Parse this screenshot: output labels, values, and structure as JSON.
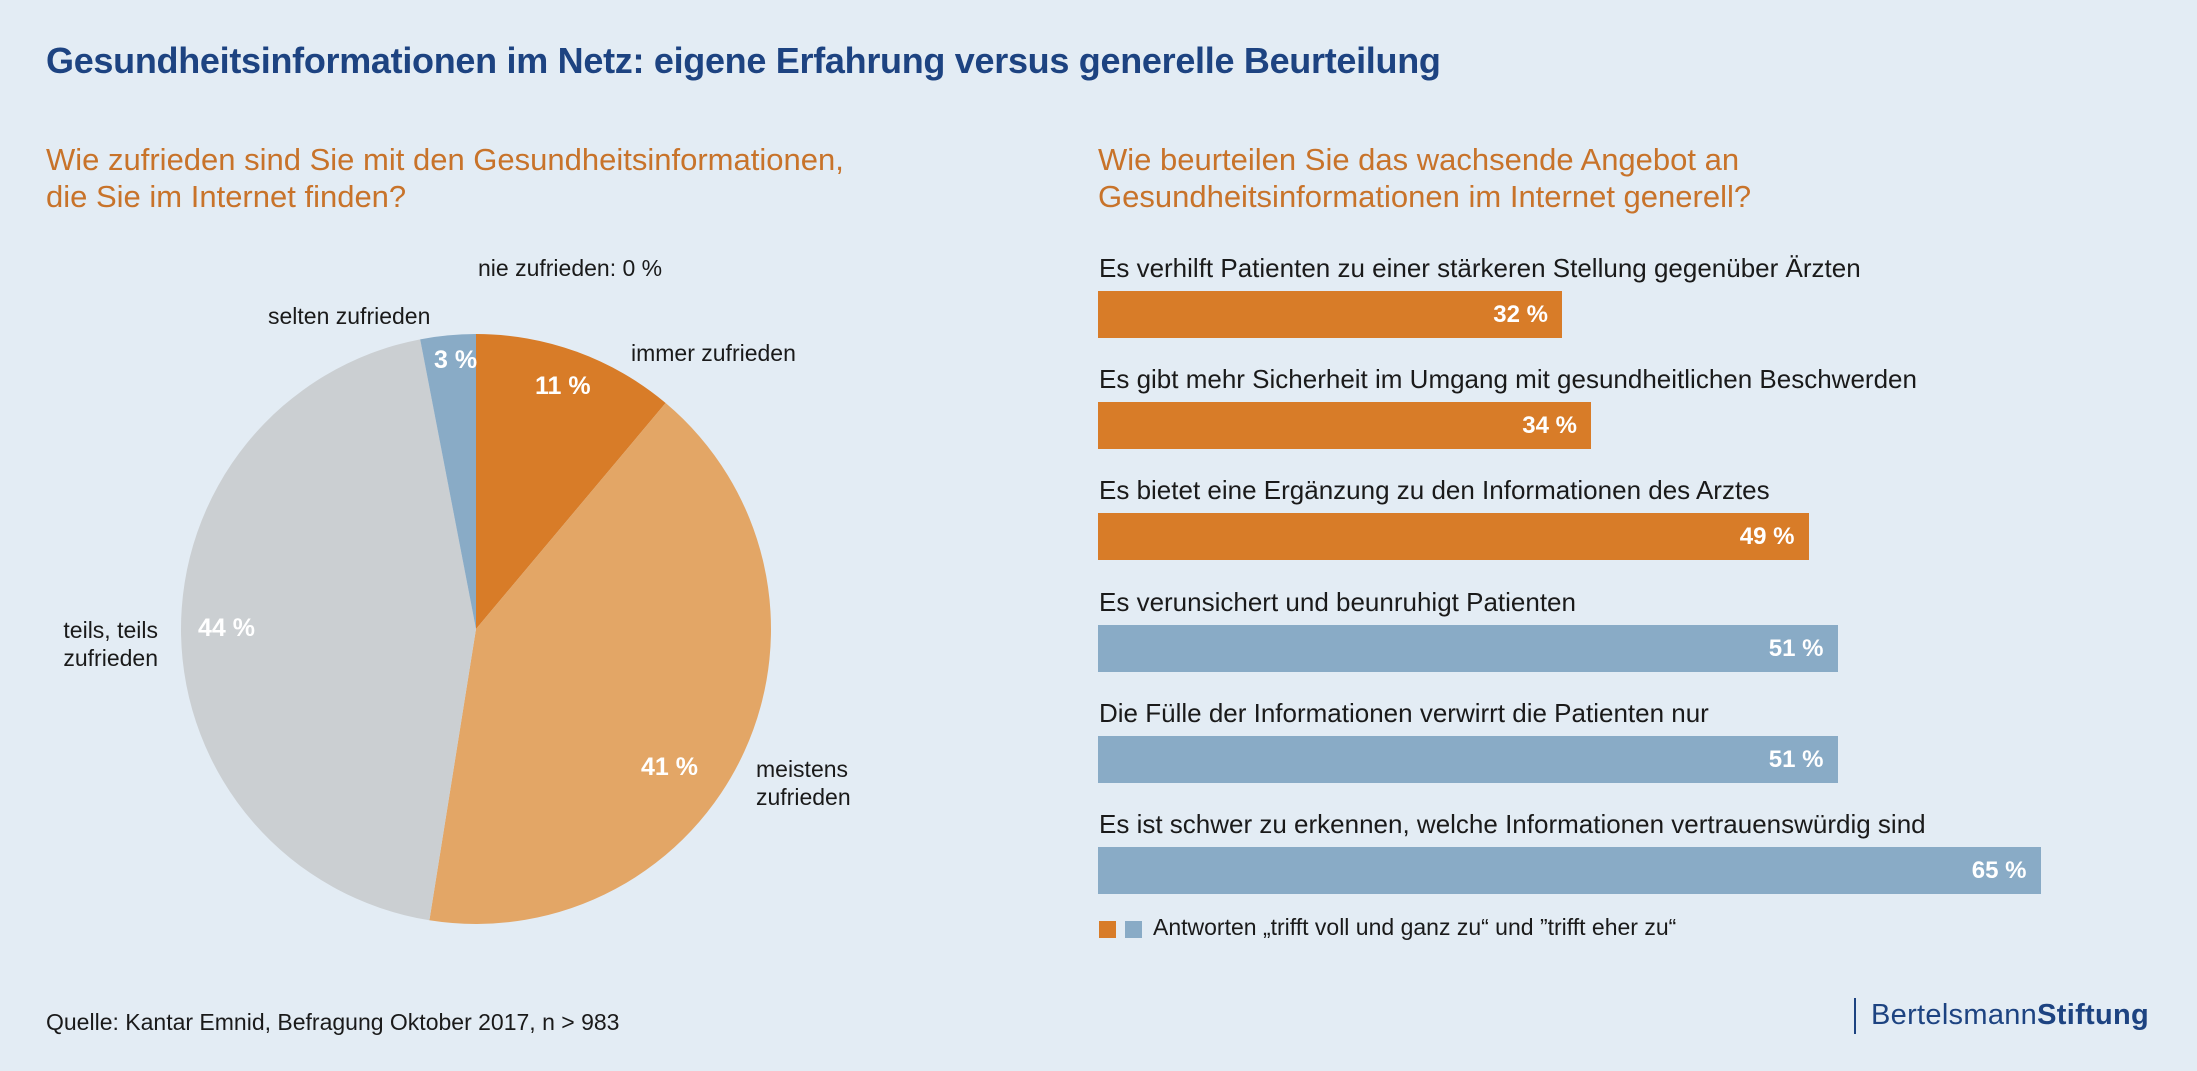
{
  "title": "Gesundheitsinformationen im Netz: eigene Erfahrung versus generelle Beurteilung",
  "colors": {
    "background": "#e3ecf4",
    "title": "#1d4381",
    "question": "#c8732a",
    "orange_dark": "#d87c28",
    "orange_light": "#e3a666",
    "grey": "#cbcfd2",
    "blue": "#89abc6"
  },
  "chart_data": [
    {
      "type": "pie",
      "title": "Wie zufrieden sind Sie mit den Gesundheitsinformationen, die Sie im Internet finden?",
      "title_lines": [
        "Wie zufrieden sind Sie mit den Gesundheitsinformationen,",
        "die Sie im Internet finden?"
      ],
      "start": "12 o'clock, clockwise",
      "slices": [
        {
          "label": "immer zufrieden",
          "value": 11,
          "value_label": "11 %",
          "color": "#d87c28"
        },
        {
          "label": "meistens zufrieden",
          "label_lines": [
            "meistens",
            "zufrieden"
          ],
          "value": 41,
          "value_label": "41 %",
          "color": "#e3a666"
        },
        {
          "label": "teils, teils zufrieden",
          "label_lines": [
            "teils, teils",
            "zufrieden"
          ],
          "value": 44,
          "value_label": "44 %",
          "color": "#cbcfd2"
        },
        {
          "label": "selten zufrieden",
          "value": 3,
          "value_label": "3 %",
          "color": "#89abc6"
        },
        {
          "label": "nie zufrieden",
          "value": 0,
          "value_label": "0 %",
          "color": "#89abc6"
        }
      ],
      "annotation": "nie zufrieden: 0 %"
    },
    {
      "type": "bar",
      "orientation": "horizontal",
      "title": "Wie beurteilen Sie das wachsende Angebot an Gesundheitsinformationen im Internet generell?",
      "title_lines": [
        "Wie beurteilen Sie das wachsende Angebot an",
        "Gesundheitsinformationen im Internet generell?"
      ],
      "categories": [
        "Es verhilft Patienten zu einer stärkeren Stellung gegenüber Ärzten",
        "Es gibt mehr Sicherheit im Umgang mit gesundheitlichen Beschwerden",
        "Es bietet eine Ergänzung zu den Informationen des Arztes",
        "Es verunsichert und beunruhigt Patienten",
        "Die Fülle der Informationen verwirrt die Patienten nur",
        "Es ist schwer zu erkennen, welche Informationen vertrauenswürdig sind"
      ],
      "values": [
        32,
        34,
        49,
        51,
        51,
        65
      ],
      "value_labels": [
        "32 %",
        "34 %",
        "49 %",
        "51 %",
        "51 %",
        "65 %"
      ],
      "bar_colors": [
        "#d87c28",
        "#d87c28",
        "#d87c28",
        "#89abc6",
        "#89abc6",
        "#89abc6"
      ],
      "unit": "%",
      "xlim": [
        0,
        100
      ],
      "grid": false,
      "legend": {
        "placement": "bottom-left",
        "swatches": [
          "#d87c28",
          "#89abc6"
        ],
        "text": "Antworten „trifft voll und ganz zu“ und ”trifft eher zu“"
      }
    }
  ],
  "footer": {
    "source": "Quelle: Kantar Emnid, Befragung Oktober 2017, n > 983",
    "logo_regular": "Bertelsmann",
    "logo_bold": "Stiftung"
  }
}
